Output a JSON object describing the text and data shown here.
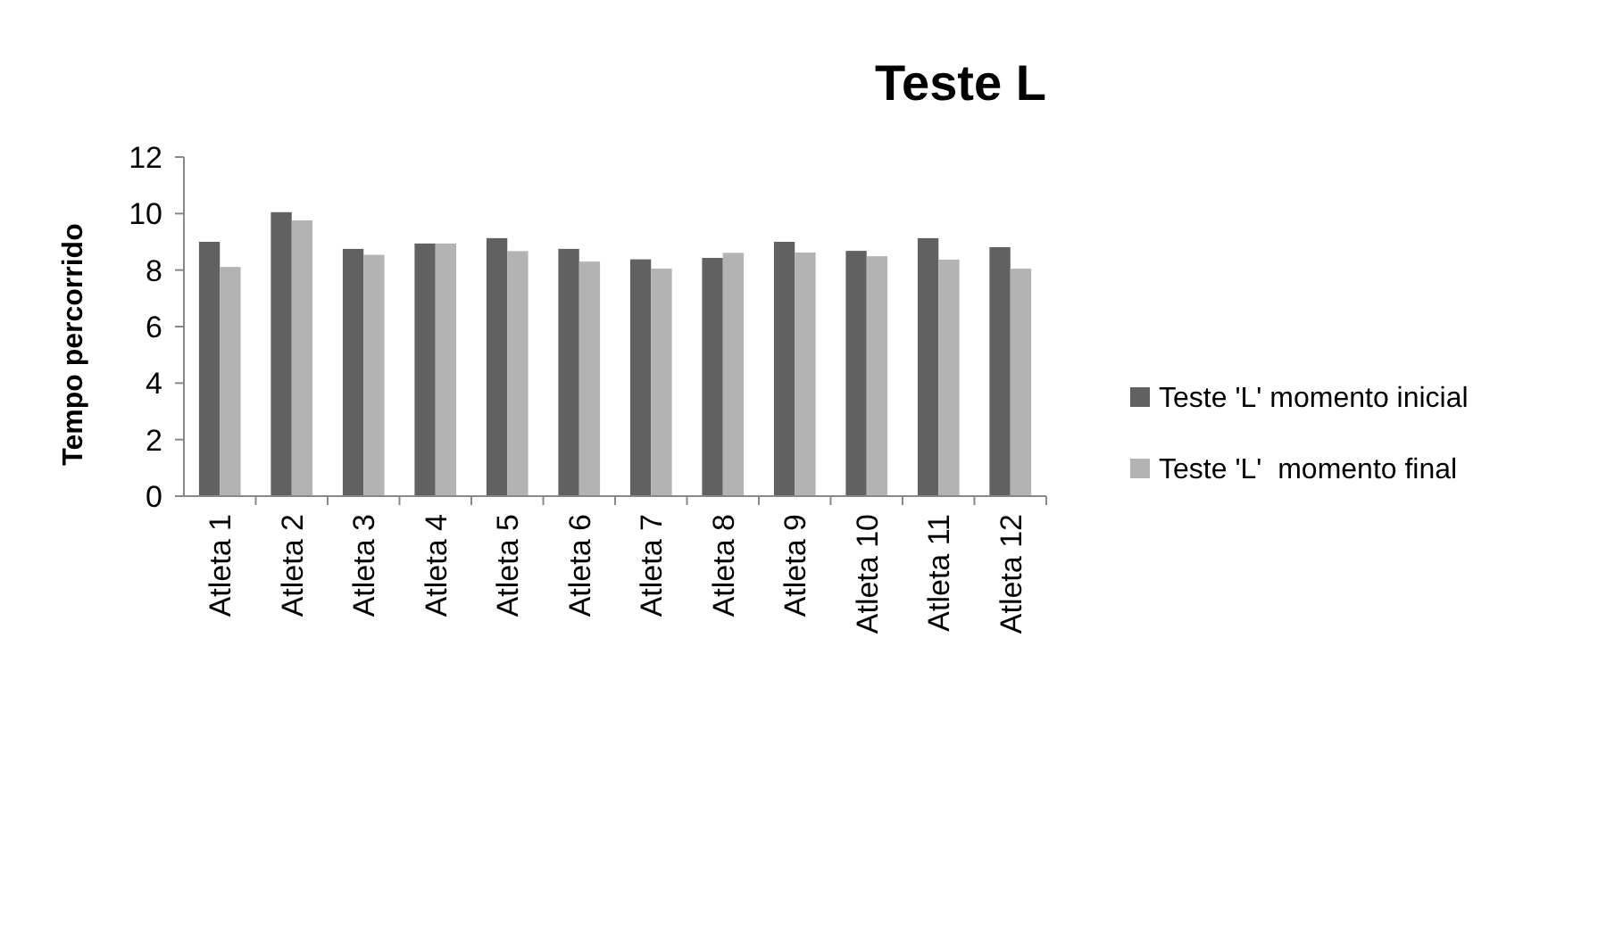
{
  "chart_data": {
    "type": "bar",
    "title": "Teste L",
    "ylabel": "Tempo percorrido",
    "categories": [
      "Atleta 1",
      "Atleta 2",
      "Atleta 3",
      "Atleta 4",
      "Atleta 5",
      "Atleta 6",
      "Atleta 7",
      "Atleta 8",
      "Atleta 9",
      "Atleta 10",
      "Atleta 11",
      "Atleta 12"
    ],
    "series": [
      {
        "name": "Teste 'L' momento inicial",
        "color": "#616161",
        "values": [
          9.0,
          10.05,
          8.75,
          8.94,
          9.13,
          8.75,
          8.38,
          8.43,
          9.0,
          8.68,
          9.13,
          8.81
        ]
      },
      {
        "name": "Teste 'L'  momento final",
        "color": "#b3b3b3",
        "values": [
          8.11,
          9.76,
          8.54,
          8.94,
          8.67,
          8.3,
          8.05,
          8.61,
          8.62,
          8.49,
          8.37,
          8.05
        ]
      }
    ],
    "ylim": [
      0,
      12
    ],
    "yticks": [
      0,
      2,
      4,
      6,
      8,
      10,
      12
    ],
    "grid": false,
    "legend": "right"
  }
}
